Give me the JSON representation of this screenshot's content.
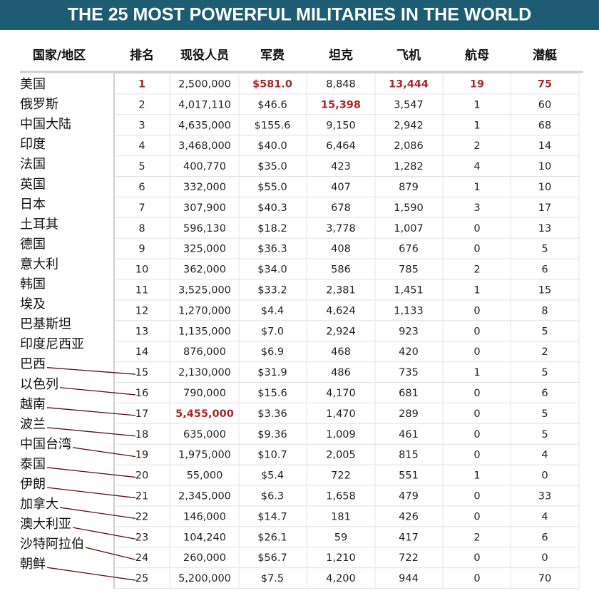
{
  "title": "THE 25 MOST POWERFUL MILITARIES IN THE WORLD",
  "table": {
    "columns": [
      "国家/地区",
      "排名",
      "现役人员",
      "军费",
      "坦克",
      "飞机",
      "航母",
      "潜艇"
    ],
    "rows": [
      [
        "美国",
        "1",
        "2,500,000",
        "$581.0",
        "8,848",
        "13,444",
        "19",
        "75"
      ],
      [
        "俄罗斯",
        "2",
        "4,017,110",
        "$46.6",
        "15,398",
        "3,547",
        "1",
        "60"
      ],
      [
        "中国大陆",
        "3",
        "4,635,000",
        "$155.6",
        "9,150",
        "2,942",
        "1",
        "68"
      ],
      [
        "印度",
        "4",
        "3,468,000",
        "$40.0",
        "6,464",
        "2,086",
        "2",
        "14"
      ],
      [
        "法国",
        "5",
        "400,770",
        "$35.0",
        "423",
        "1,282",
        "4",
        "10"
      ],
      [
        "英国",
        "6",
        "332,000",
        "$55.0",
        "407",
        "879",
        "1",
        "10"
      ],
      [
        "日本",
        "7",
        "307,900",
        "$40.3",
        "678",
        "1,590",
        "3",
        "17"
      ],
      [
        "土耳其",
        "8",
        "596,130",
        "$18.2",
        "3,778",
        "1,007",
        "0",
        "13"
      ],
      [
        "德国",
        "9",
        "325,000",
        "$36.3",
        "408",
        "676",
        "0",
        "5"
      ],
      [
        "意大利",
        "10",
        "362,000",
        "$34.0",
        "586",
        "785",
        "2",
        "6"
      ],
      [
        "韩国",
        "11",
        "3,525,000",
        "$33.2",
        "2,381",
        "1,451",
        "1",
        "15"
      ],
      [
        "埃及",
        "12",
        "1,270,000",
        "$4.4",
        "4,624",
        "1,133",
        "0",
        "8"
      ],
      [
        "巴基斯坦",
        "13",
        "1,135,000",
        "$7.0",
        "2,924",
        "923",
        "0",
        "5"
      ],
      [
        "印度尼西亚",
        "14",
        "876,000",
        "$6.9",
        "468",
        "420",
        "0",
        "2"
      ],
      [
        "巴西",
        "15",
        "2,130,000",
        "$31.9",
        "486",
        "735",
        "1",
        "5"
      ],
      [
        "以色列",
        "16",
        "790,000",
        "$15.6",
        "4,170",
        "681",
        "0",
        "6"
      ],
      [
        "越南",
        "17",
        "5,455,000",
        "$3.36",
        "1,470",
        "289",
        "0",
        "5"
      ],
      [
        "波兰",
        "18",
        "635,000",
        "$9.36",
        "1,009",
        "461",
        "0",
        "5"
      ],
      [
        "中国台湾",
        "19",
        "1,975,000",
        "$10.7",
        "2,005",
        "815",
        "0",
        "4"
      ],
      [
        "泰国",
        "20",
        "55,000",
        "$5.4",
        "722",
        "551",
        "1",
        "0"
      ],
      [
        "伊朗",
        "21",
        "2,345,000",
        "$6.3",
        "1,658",
        "479",
        "0",
        "33"
      ],
      [
        "加拿大",
        "22",
        "146,000",
        "$14.7",
        "181",
        "426",
        "0",
        "4"
      ],
      [
        "澳大利亚",
        "23",
        "104,240",
        "$26.1",
        "59",
        "417",
        "2",
        "6"
      ],
      [
        "沙特阿拉伯",
        "24",
        "260,000",
        "$56.7",
        "1,210",
        "722",
        "0",
        "0"
      ],
      [
        "朝鲜",
        "25",
        "5,200,000",
        "$7.5",
        "4,200",
        "944",
        "0",
        "70"
      ]
    ]
  }
}
